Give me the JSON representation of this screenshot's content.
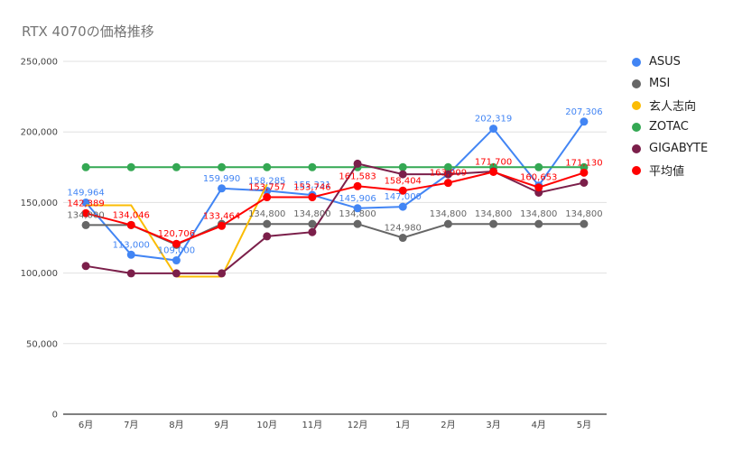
{
  "title": "RTX 4070の価格推移",
  "chart_data": {
    "type": "line",
    "title": "RTX 4070の価格推移",
    "categories": [
      "6月",
      "7月",
      "8月",
      "9月",
      "10月",
      "11月",
      "12月",
      "1月",
      "2月",
      "3月",
      "4月",
      "5月"
    ],
    "ylim": [
      0,
      250000
    ],
    "yticks": [
      "0",
      "50,000",
      "100,000",
      "150,000",
      "200,000",
      "250,000"
    ],
    "ytick_values": [
      0,
      50000,
      100000,
      150000,
      200000,
      250000
    ],
    "grid": true,
    "legend_position": "right",
    "series": [
      {
        "name": "ASUS",
        "color": "#4285f4",
        "marker": true,
        "values": [
          149964,
          113000,
          109000,
          159990,
          158285,
          155331,
          145906,
          147000,
          170000,
          202319,
          162000,
          207306
        ],
        "labels": [
          "149,964",
          "113,000",
          "109,000",
          "159,990",
          "158,285",
          "155,331",
          "145,906",
          "147,000",
          null,
          "202,319",
          null,
          "207,306"
        ]
      },
      {
        "name": "MSI",
        "color": "#666666",
        "marker": true,
        "values": [
          134000,
          134000,
          120000,
          134800,
          134800,
          134800,
          134800,
          124980,
          134800,
          134800,
          134800,
          134800
        ],
        "labels": [
          "134,000",
          null,
          null,
          null,
          "134,800",
          "134,800",
          "134,800",
          "124,980",
          "134,800",
          "134,800",
          "134,800",
          "134,800"
        ]
      },
      {
        "name": "玄人志向",
        "color": "#fbbc04",
        "marker": false,
        "values": [
          148000,
          148000,
          97500,
          97500,
          163000,
          null,
          null,
          null,
          null,
          null,
          null,
          null
        ],
        "labels": [
          null,
          null,
          null,
          null,
          null,
          null,
          null,
          null,
          null,
          null,
          null,
          null
        ]
      },
      {
        "name": "ZOTAC",
        "color": "#34a853",
        "marker": true,
        "values": [
          175000,
          175000,
          175000,
          175000,
          175000,
          175000,
          175000,
          175000,
          175000,
          175000,
          175000,
          175000
        ],
        "labels": [
          null,
          null,
          null,
          null,
          null,
          null,
          null,
          null,
          null,
          null,
          null,
          null
        ]
      },
      {
        "name": "GIGABYTE",
        "color": "#7b1f4a",
        "marker": true,
        "values": [
          105000,
          99800,
          99800,
          99800,
          126000,
          129000,
          177500,
          170000,
          170000,
          172000,
          157000,
          164000
        ],
        "labels": [
          null,
          null,
          null,
          null,
          null,
          null,
          null,
          null,
          null,
          null,
          null,
          null
        ]
      },
      {
        "name": "平均値",
        "color": "#ff0000",
        "marker": true,
        "values": [
          142389,
          134046,
          120706,
          133464,
          153757,
          153746,
          161583,
          158404,
          163909,
          171700,
          160653,
          171130
        ],
        "labels": [
          "142,389",
          "134,046",
          "120,706",
          "133,464",
          "153,757",
          "153,746",
          "161,583",
          "158,404",
          "163,909",
          "171,700",
          "160,653",
          "171,130"
        ]
      }
    ]
  }
}
